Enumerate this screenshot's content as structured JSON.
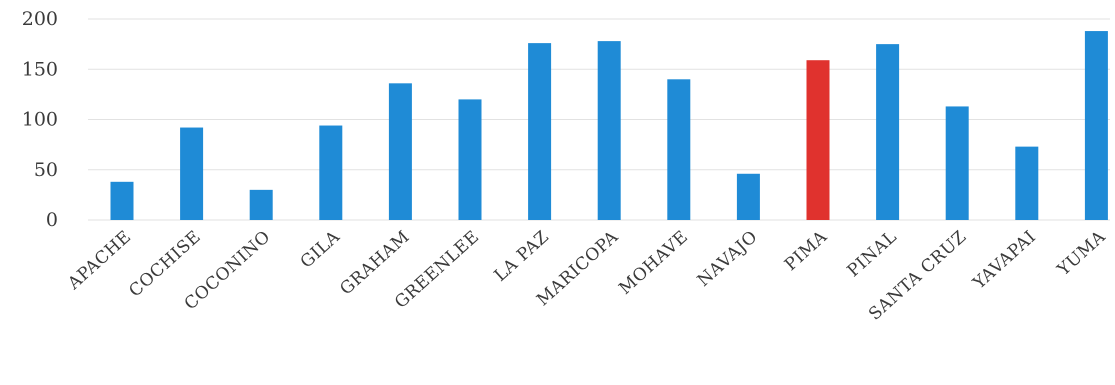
{
  "chart_data": {
    "type": "bar",
    "title": "",
    "xlabel": "",
    "ylabel": "",
    "ylim": [
      0,
      200
    ],
    "yticks": [
      0,
      50,
      100,
      150,
      200
    ],
    "grid": true,
    "categories": [
      "APACHE",
      "COCHISE",
      "COCONINO",
      "GILA",
      "GRAHAM",
      "GREENLEE",
      "LA PAZ",
      "MARICOPA",
      "MOHAVE",
      "NAVAJO",
      "PIMA",
      "PINAL",
      "SANTA CRUZ",
      "YAVAPAI",
      "YUMA"
    ],
    "values": [
      38,
      92,
      30,
      94,
      136,
      120,
      176,
      178,
      140,
      46,
      159,
      175,
      113,
      73,
      188
    ],
    "highlight": "PIMA",
    "colors": {
      "bar": "#1f8bd6",
      "highlight": "#e0322e",
      "grid": "#e2e2e2",
      "text": "#3a3a3a"
    }
  }
}
